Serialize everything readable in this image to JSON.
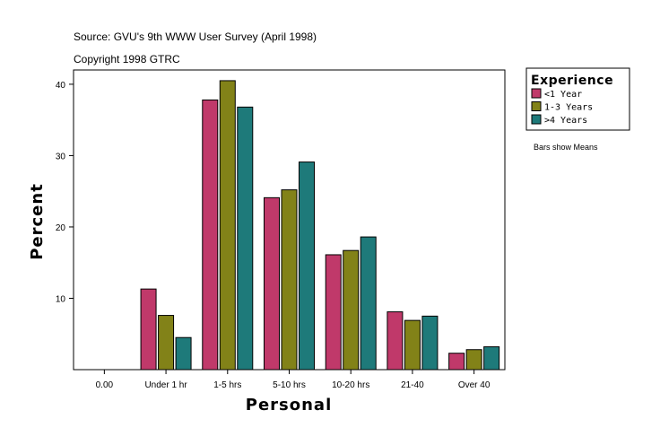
{
  "source_line": "Source: GVU's 9th WWW User Survey (April 1998)",
  "copyright_line": "Copyright 1998 GTRC",
  "note": "Bars show Means",
  "chart_data": {
    "type": "bar",
    "categories": [
      "0.00",
      "Under 1 hr",
      "1-5 hrs",
      "5-10 hrs",
      "10-20 hrs",
      "21-40",
      "Over 40"
    ],
    "series": [
      {
        "name": "<1 Year",
        "color": "#c0396a",
        "values": [
          0,
          11.3,
          37.8,
          24.1,
          16.1,
          8.1,
          2.3
        ]
      },
      {
        "name": "1-3 Years",
        "color": "#828218",
        "values": [
          0,
          7.6,
          40.5,
          25.2,
          16.7,
          6.9,
          2.8
        ]
      },
      {
        "name": ">4 Years",
        "color": "#1e7a7a",
        "values": [
          0,
          4.5,
          36.8,
          29.1,
          18.6,
          7.5,
          3.2
        ]
      }
    ],
    "xlabel": "Personal",
    "ylabel": "Percent",
    "ylim": [
      0,
      42
    ],
    "yticks": [
      10,
      20,
      30,
      40
    ],
    "legend_title": "Experience",
    "legend_position": "right",
    "grid": false
  }
}
